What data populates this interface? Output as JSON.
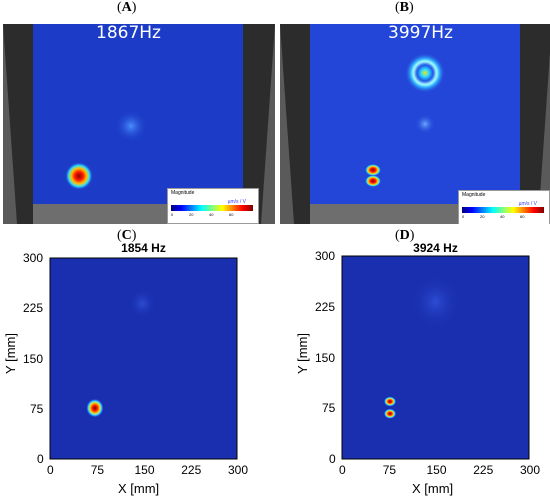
{
  "panels": {
    "A": {
      "label_open": "(",
      "letter": "A",
      "label_close": ")",
      "freq": "1867Hz"
    },
    "B": {
      "label_open": "(",
      "letter": "B",
      "label_close": ")",
      "freq": "3997Hz"
    },
    "C": {
      "label_open": "(",
      "letter": "C",
      "label_close": ")"
    },
    "D": {
      "label_open": "(",
      "letter": "D",
      "label_close": ")"
    }
  },
  "legend": {
    "title": "Magnitude",
    "unit": "µm/s / V",
    "ticks": [
      "0",
      "20",
      "40",
      "60"
    ]
  },
  "colors": {
    "field_bg": "#1c3cc8",
    "plot_bg": "#1a2fb0",
    "hot": "#ff0000",
    "frame": "#3a3a3a"
  },
  "chart_data": [
    {
      "type": "heatmap",
      "title": "1854 Hz",
      "xlabel": "X [mm]",
      "ylabel": "Y [mm]",
      "xlim": [
        0,
        300
      ],
      "ylim": [
        0,
        300
      ],
      "xticks": [
        "0",
        "75",
        "150",
        "225",
        "300"
      ],
      "yticks": [
        "0",
        "75",
        "150",
        "225",
        "300"
      ],
      "hotspots": [
        {
          "x": 72,
          "y": 76,
          "r": 14,
          "intensity": 1.0
        },
        {
          "x": 148,
          "y": 232,
          "r": 22,
          "intensity": 0.15
        }
      ]
    },
    {
      "type": "heatmap",
      "title": "3924 Hz",
      "xlabel": "X [mm]",
      "ylabel": "Y [mm]",
      "xlim": [
        0,
        300
      ],
      "ylim": [
        0,
        300
      ],
      "xticks": [
        "0",
        "75",
        "150",
        "225",
        "300"
      ],
      "yticks": [
        "0",
        "75",
        "150",
        "225",
        "300"
      ],
      "hotspots": [
        {
          "x": 77,
          "y": 85,
          "r": 10,
          "intensity": 1.0
        },
        {
          "x": 77,
          "y": 67,
          "r": 10,
          "intensity": 1.0
        },
        {
          "x": 150,
          "y": 232,
          "r": 40,
          "intensity": 0.12
        }
      ]
    }
  ]
}
